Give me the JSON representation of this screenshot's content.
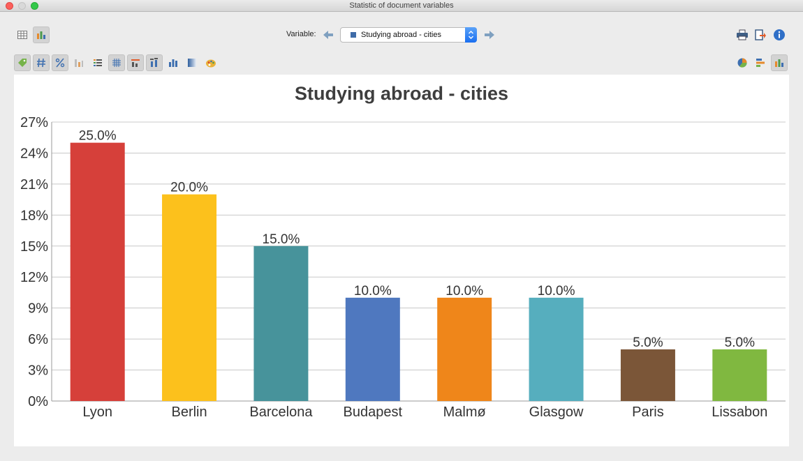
{
  "window": {
    "title": "Statistic of document variables"
  },
  "toolbar": {
    "variable_label": "Variable:",
    "variable_value": "Studying abroad - cities",
    "variable_color": "#3f6ca8"
  },
  "icons": {
    "view_left": [
      "table-view-icon",
      "chart-view-icon"
    ],
    "format_left": [
      "tag-icon",
      "number-icon",
      "percent-icon",
      "column-chart-toggle-icon",
      "list-icon",
      "grid-icon",
      "top-labels-icon",
      "value-labels-icon",
      "bar-chart-icon",
      "gradient-icon",
      "palette-icon"
    ],
    "right_top": [
      "print-icon",
      "export-icon",
      "info-icon"
    ],
    "right_chart_types": [
      "pie-chart-icon",
      "horizontal-bar-icon",
      "column-chart-icon"
    ]
  },
  "chart_data": {
    "type": "bar",
    "title": "Studying abroad - cities",
    "categories": [
      "Lyon",
      "Berlin",
      "Barcelona",
      "Budapest",
      "Malmø",
      "Glasgow",
      "Paris",
      "Lissabon"
    ],
    "values": [
      25.0,
      20.0,
      15.0,
      10.0,
      10.0,
      10.0,
      5.0,
      5.0
    ],
    "value_labels": [
      "25.0%",
      "20.0%",
      "15.0%",
      "10.0%",
      "10.0%",
      "10.0%",
      "5.0%",
      "5.0%"
    ],
    "colors": [
      "#d6403a",
      "#fcc11c",
      "#47939b",
      "#4f78bf",
      "#ef861a",
      "#56aebe",
      "#7b5638",
      "#80b840"
    ],
    "yticks": [
      "0%",
      "3%",
      "6%",
      "9%",
      "12%",
      "15%",
      "18%",
      "21%",
      "24%",
      "27%"
    ],
    "ylim": [
      0,
      27
    ],
    "grid": true
  }
}
